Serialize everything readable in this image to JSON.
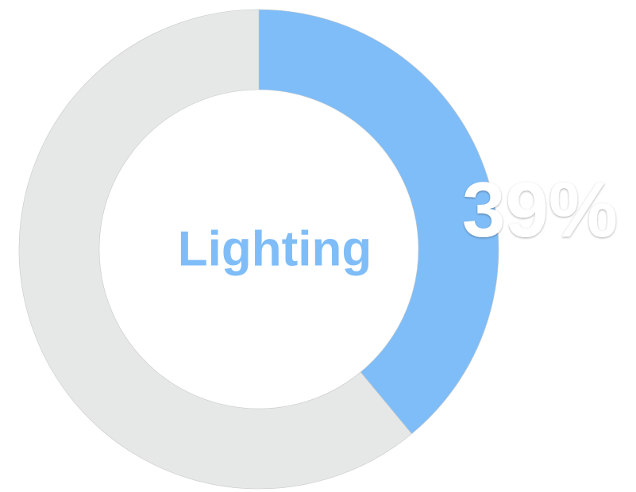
{
  "chart_data": {
    "type": "donut",
    "categories": [
      "Lighting",
      null
    ],
    "values": [
      39,
      61
    ],
    "value_labels": [
      "39%",
      null
    ],
    "colors": [
      "#7fbdf8",
      "#e6e7e7"
    ]
  }
}
